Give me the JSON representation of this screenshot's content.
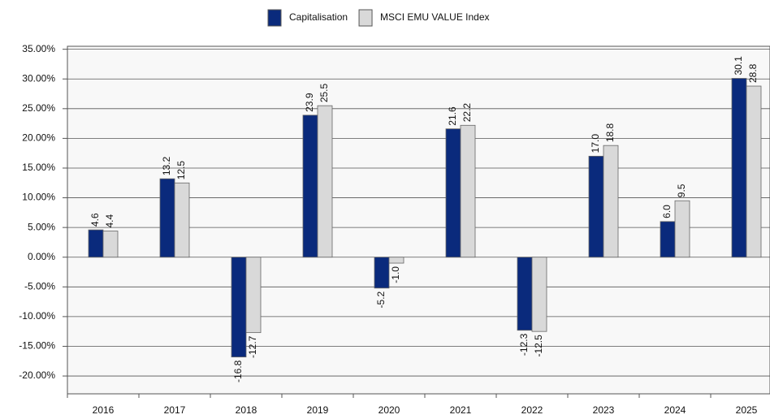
{
  "chart_data": {
    "type": "bar",
    "categories": [
      "2016",
      "2017",
      "2018",
      "2019",
      "2020",
      "2021",
      "2022",
      "2023",
      "2024",
      "2025"
    ],
    "series": [
      {
        "name": "Capitalisation",
        "color": "#0a2a7c",
        "values": [
          4.6,
          13.2,
          -16.8,
          23.9,
          -5.2,
          21.6,
          -12.3,
          17.0,
          6.0,
          30.1
        ],
        "value_labels": [
          "4.6",
          "13.2",
          "-16.8",
          "23.9",
          "-5.2",
          "21.6",
          "-12.3",
          "17.0",
          "6.0",
          "30.1"
        ]
      },
      {
        "name": "MSCI EMU VALUE Index",
        "color": "#d9d9d9",
        "values": [
          4.4,
          12.5,
          -12.7,
          25.5,
          -1.0,
          22.2,
          -12.5,
          18.8,
          9.5,
          28.8
        ],
        "value_labels": [
          "4.4",
          "12.5",
          "-12.7",
          "25.5",
          "-1.0",
          "22.2",
          "-12.5",
          "18.8",
          "9.5",
          "28.8"
        ]
      }
    ],
    "ylim": [
      -23,
      35.5
    ],
    "yticks": [
      {
        "value": 35,
        "label": "35.00%"
      },
      {
        "value": 30,
        "label": "30.00%"
      },
      {
        "value": 25,
        "label": "25.00%"
      },
      {
        "value": 20,
        "label": "20.00%"
      },
      {
        "value": 15,
        "label": "15.00%"
      },
      {
        "value": 10,
        "label": "10.00%"
      },
      {
        "value": 5,
        "label": "5.00%"
      },
      {
        "value": 0,
        "label": "0.00%"
      },
      {
        "value": -5,
        "label": "-5.00%"
      },
      {
        "value": -10,
        "label": "-10.00%"
      },
      {
        "value": -15,
        "label": "-15.00%"
      },
      {
        "value": -20,
        "label": "-20.00%"
      }
    ],
    "grid": true,
    "legend": "top"
  }
}
